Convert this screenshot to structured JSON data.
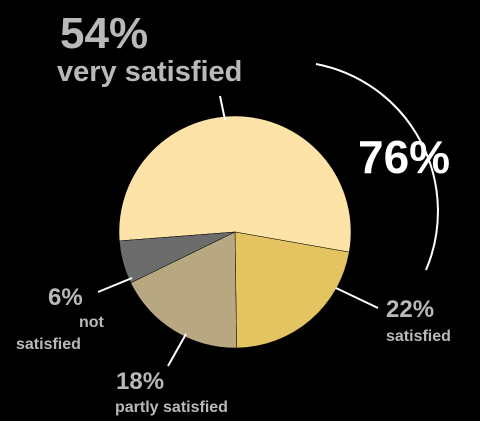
{
  "chart_data": {
    "type": "pie",
    "title": "",
    "slices": [
      {
        "label": "very satisfied",
        "value": 54,
        "value_text": "54%",
        "color": "#fde3a7"
      },
      {
        "label": "satisfied",
        "value": 22,
        "value_text": "22%",
        "color": "#e4c461"
      },
      {
        "label": "partly satisfied",
        "value": 18,
        "value_text": "18%",
        "color": "#b7a882"
      },
      {
        "label": "not satisfied",
        "value": 6,
        "value_text": "6%",
        "color": "#6c6c6c"
      }
    ],
    "annotation": {
      "value": 76,
      "value_text": "76%"
    }
  },
  "labels": {
    "very_satisfied_pct": "54%",
    "very_satisfied": "very satisfied",
    "satisfied_pct": "22%",
    "satisfied": "satisfied",
    "partly_satisfied_pct": "18%",
    "partly_satisfied": "partly satisfied",
    "not_satisfied_pct": "6%",
    "not_word": "not",
    "satisfied_word": "satisfied",
    "total_pct": "76%"
  }
}
